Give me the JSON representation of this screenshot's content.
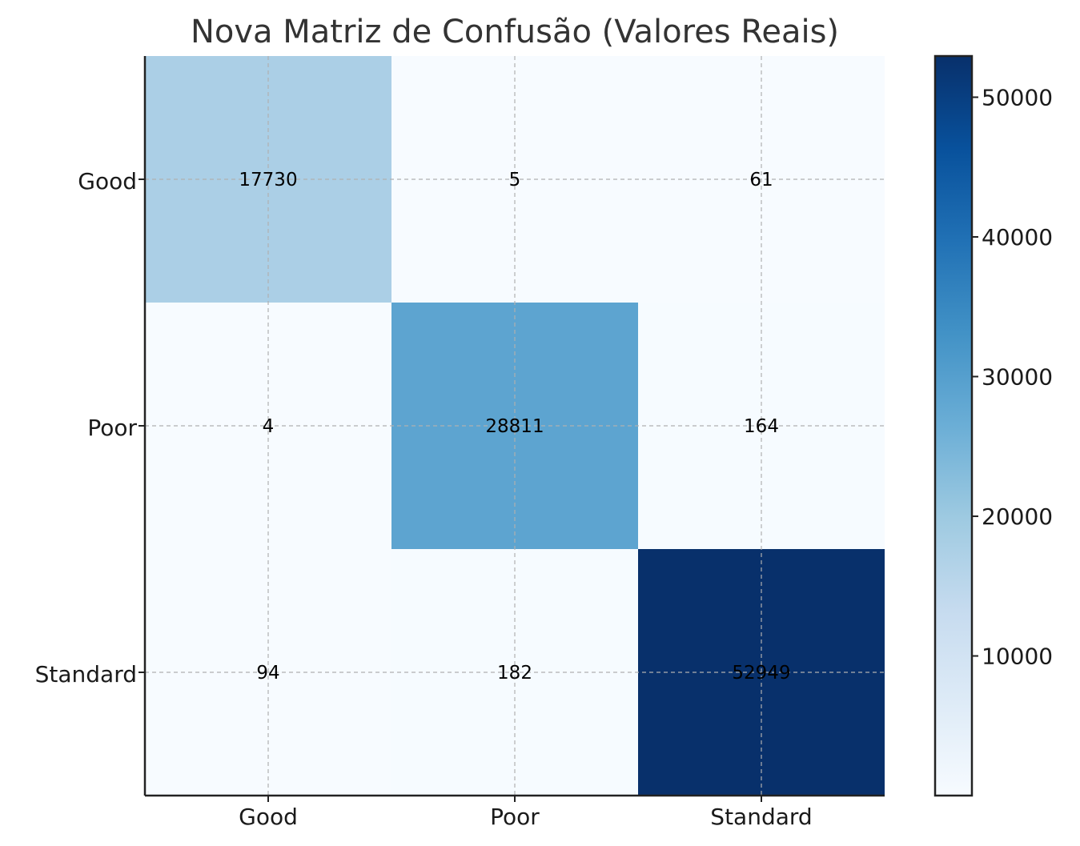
{
  "chart_data": {
    "type": "heatmap",
    "title": "Nova Matriz de Confusão (Valores Reais)",
    "xlabel": "",
    "ylabel": "",
    "x_categories": [
      "Good",
      "Poor",
      "Standard"
    ],
    "y_categories": [
      "Good",
      "Poor",
      "Standard"
    ],
    "values": [
      [
        17730,
        5,
        61
      ],
      [
        4,
        28811,
        164
      ],
      [
        94,
        182,
        52949
      ]
    ],
    "colormap": "Blues",
    "colorbar": {
      "min": 4,
      "max": 52949,
      "ticks": [
        10000,
        20000,
        30000,
        40000,
        50000
      ],
      "tick_labels": [
        "10000",
        "20000",
        "30000",
        "40000",
        "50000"
      ]
    },
    "grid": true,
    "colors": {
      "low": "#f7fbff",
      "high": "#08306b"
    }
  }
}
